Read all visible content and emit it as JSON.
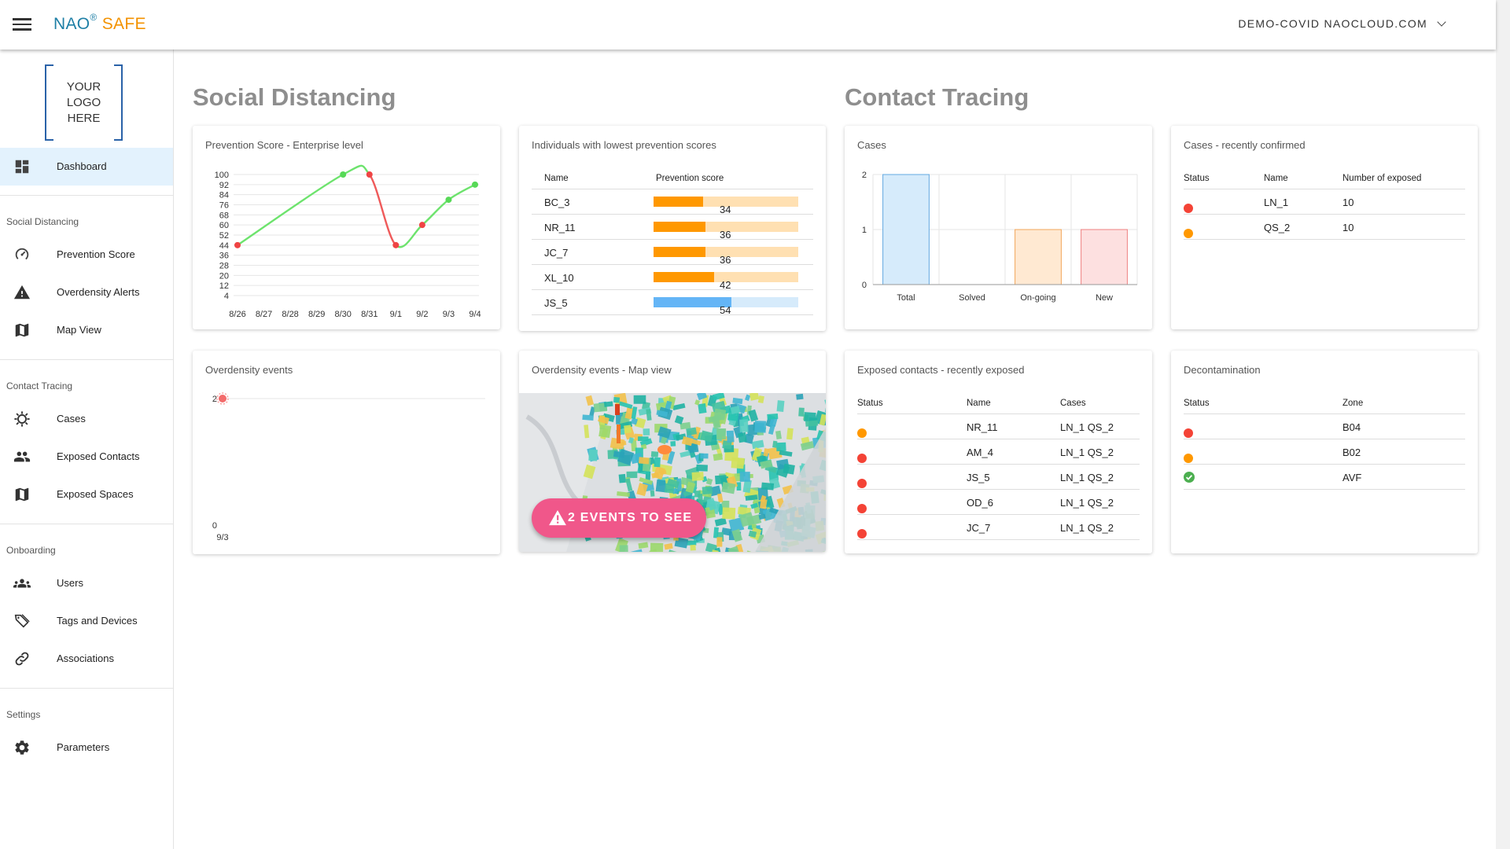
{
  "header": {
    "brand_nao": "NAO",
    "brand_reg": "®",
    "brand_safe": "SAFE",
    "domain": "DEMO-COVID NAOCLOUD.COM"
  },
  "sidebar": {
    "logo_lines": [
      "YOUR",
      "LOGO",
      "HERE"
    ],
    "dashboard": "Dashboard",
    "sections": [
      {
        "title": "Social Distancing",
        "items": [
          {
            "label": "Prevention Score",
            "icon": "gauge-icon"
          },
          {
            "label": "Overdensity Alerts",
            "icon": "warning-icon"
          },
          {
            "label": "Map View",
            "icon": "map-icon"
          }
        ]
      },
      {
        "title": "Contact Tracing",
        "items": [
          {
            "label": "Cases",
            "icon": "virus-icon"
          },
          {
            "label": "Exposed Contacts",
            "icon": "people-icon"
          },
          {
            "label": "Exposed Spaces",
            "icon": "map-icon"
          }
        ]
      },
      {
        "title": "Onboarding",
        "items": [
          {
            "label": "Users",
            "icon": "group-icon"
          },
          {
            "label": "Tags and Devices",
            "icon": "tags-icon"
          },
          {
            "label": "Associations",
            "icon": "link-icon"
          }
        ]
      },
      {
        "title": "Settings",
        "items": [
          {
            "label": "Parameters",
            "icon": "gear-icon"
          }
        ]
      }
    ]
  },
  "social_distancing": {
    "title": "Social Distancing",
    "prevention_score": {
      "title": "Prevention Score - Enterprise level"
    },
    "lowest_scores": {
      "title": "Individuals with lowest prevention scores",
      "headers": [
        "Name",
        "Prevention score"
      ],
      "rows": [
        {
          "name": "BC_3",
          "score": 34
        },
        {
          "name": "NR_11",
          "score": 36
        },
        {
          "name": "JC_7",
          "score": 36
        },
        {
          "name": "XL_10",
          "score": 42
        },
        {
          "name": "JS_5",
          "score": 54
        }
      ]
    },
    "overdensity": {
      "title": "Overdensity events"
    },
    "map": {
      "title": "Overdensity events - Map view",
      "button": "2 EVENTS TO SEE"
    }
  },
  "contact_tracing": {
    "title": "Contact Tracing",
    "cases": {
      "title": "Cases"
    },
    "recent_cases": {
      "title": "Cases - recently confirmed",
      "headers": [
        "Status",
        "Name",
        "Number of exposed"
      ],
      "rows": [
        {
          "status": "red",
          "name": "LN_1",
          "exposed": "10"
        },
        {
          "status": "orange",
          "name": "QS_2",
          "exposed": "10"
        }
      ]
    },
    "exposed_contacts": {
      "title": "Exposed contacts - recently exposed",
      "headers": [
        "Status",
        "Name",
        "Cases"
      ],
      "rows": [
        {
          "status": "orange",
          "name": "NR_11",
          "cases": "LN_1 QS_2"
        },
        {
          "status": "red",
          "name": "AM_4",
          "cases": "LN_1 QS_2"
        },
        {
          "status": "red",
          "name": "JS_5",
          "cases": "LN_1 QS_2"
        },
        {
          "status": "red",
          "name": "OD_6",
          "cases": "LN_1 QS_2"
        },
        {
          "status": "red",
          "name": "JC_7",
          "cases": "LN_1 QS_2"
        }
      ]
    },
    "decontamination": {
      "title": "Decontamination",
      "headers": [
        "Status",
        "Zone"
      ],
      "rows": [
        {
          "status": "red",
          "zone": "B04"
        },
        {
          "status": "orange",
          "zone": "B02"
        },
        {
          "status": "green-check",
          "zone": "AVF"
        }
      ]
    }
  },
  "colors": {
    "red": "#f44336",
    "orange": "#ff9800",
    "green": "#4caf50",
    "blue_bar": "#64b5f6",
    "score_low": "#ff9800",
    "score_track_low": "#ffe0b2",
    "score_track_high": "#d6ebfb",
    "accent": "#1e7fa6",
    "pink": "#f0578a"
  },
  "chart_data": [
    {
      "type": "line",
      "title": "Prevention Score - Enterprise level",
      "categories": [
        "8/26",
        "8/27",
        "8/28",
        "8/29",
        "8/30",
        "8/31",
        "9/1",
        "9/2",
        "9/3",
        "9/4"
      ],
      "values": [
        44,
        null,
        null,
        null,
        100,
        100,
        44,
        60,
        80,
        92
      ],
      "yticks": [
        100,
        92,
        84,
        76,
        68,
        60,
        52,
        44,
        36,
        28,
        20,
        12,
        4
      ],
      "ylim": [
        4,
        100
      ],
      "grid": true
    },
    {
      "type": "scatter",
      "title": "Overdensity events",
      "x": [
        "9/3"
      ],
      "values": [
        2
      ],
      "yticks": [
        2,
        0
      ],
      "ylim": [
        0,
        2
      ]
    },
    {
      "type": "bar",
      "title": "Cases",
      "categories": [
        "Total",
        "Solved",
        "On-going",
        "New"
      ],
      "values": [
        2,
        0,
        1,
        1
      ],
      "ylim": [
        0,
        2
      ],
      "yticks": [
        2,
        1,
        0
      ],
      "grid": true
    }
  ]
}
